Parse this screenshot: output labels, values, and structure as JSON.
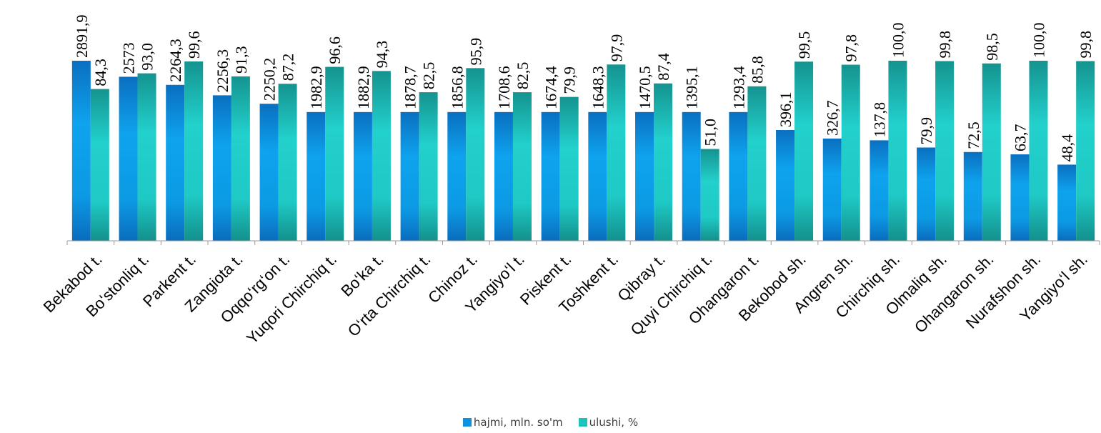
{
  "chart_data": {
    "type": "bar",
    "title": "",
    "xlabel": "",
    "ylabel": "",
    "categories": [
      "Bekabod t.",
      "Bo‘stonliq t.",
      "Parkent t.",
      "Zangiota t.",
      "Oqqo‘rg‘on t.",
      "Yuqori Chirchiq t.",
      "Bo‘ka t.",
      "O‘rta Chirchiq t.",
      "Chinoz t.",
      "Yangiyo‘l t.",
      "Piskent t.",
      "Toshkent t.",
      "Qibray t.",
      "Quyi Chirchiq t.",
      "Ohangaron t.",
      "Bekobod sh.",
      "Angren sh.",
      "Chirchiq sh.",
      "Olmaliq sh.",
      "Ohangaron sh.",
      "Nurafshon sh.",
      "Yangiyo‘l sh."
    ],
    "series": [
      {
        "name": "hajmi, mln. so'm",
        "color": "#0b93dd",
        "values": [
          2891.9,
          2573,
          2264.3,
          2256.3,
          2250.2,
          1982.9,
          1882.9,
          1878.7,
          1856.8,
          1708.6,
          1674.4,
          1648.3,
          1470.5,
          1395.1,
          1293.4,
          396.1,
          326.7,
          137.8,
          79.9,
          72.5,
          63.7,
          48.4
        ],
        "labels": [
          "2891,9",
          "2573",
          "2264,3",
          "2256,3",
          "2250,2",
          "1982,9",
          "1882,9",
          "1878,7",
          "1856,8",
          "1708,6",
          "1674,4",
          "1648,3",
          "1470,5",
          "1395,1",
          "1293,4",
          "396,1",
          "326,7",
          "137,8",
          "79,9",
          "72,5",
          "63,7",
          "48,4"
        ],
        "bar_fraction": [
          1.0,
          0.911,
          0.866,
          0.808,
          0.761,
          0.715,
          0.715,
          0.715,
          0.715,
          0.715,
          0.715,
          0.715,
          0.715,
          0.715,
          0.715,
          0.615,
          0.568,
          0.558,
          0.518,
          0.493,
          0.48,
          0.423
        ]
      },
      {
        "name": "ulushi, %",
        "color": "#1cc2c0",
        "values": [
          84.3,
          93.0,
          99.6,
          91.3,
          87.2,
          96.6,
          94.3,
          82.5,
          95.9,
          82.5,
          79.9,
          97.9,
          87.4,
          51.0,
          85.8,
          99.5,
          97.8,
          100.0,
          99.8,
          98.5,
          100.0,
          99.8
        ],
        "labels": [
          "84,3",
          "93,0",
          "99,6",
          "91,3",
          "87,2",
          "96,6",
          "94,3",
          "82,5",
          "95,9",
          "82,5",
          "79,9",
          "97,9",
          "87,4",
          "51,0",
          "85,8",
          "99,5",
          "97,8",
          "100,0",
          "99,8",
          "98,5",
          "100,0",
          "99,8"
        ],
        "ylim": [
          0,
          100
        ]
      }
    ],
    "legend_position": "bottom",
    "grid": false
  }
}
